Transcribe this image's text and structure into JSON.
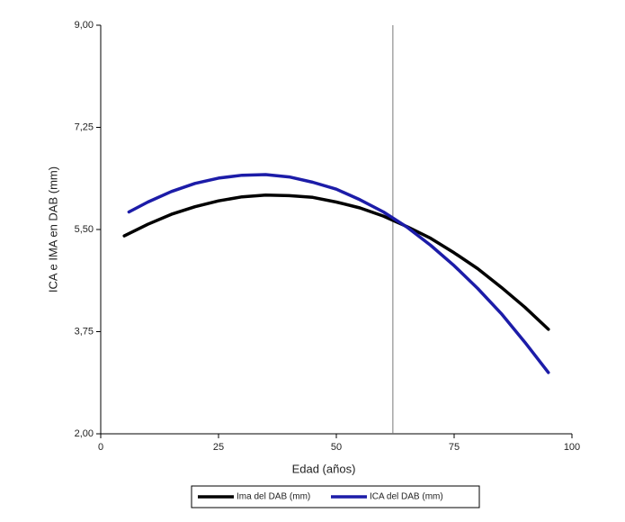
{
  "chart_data": {
    "type": "line",
    "x_label": "Edad (años)",
    "y_label": "ICA e IMA en DAB (mm)",
    "xlim": [
      0,
      100
    ],
    "xticks": [
      0,
      25,
      50,
      75,
      100
    ],
    "ylim": [
      2,
      9
    ],
    "yticks": [
      {
        "value": 2,
        "label": "2,00"
      },
      {
        "value": 3.75,
        "label": "3,75"
      },
      {
        "value": 5.5,
        "label": "5,50"
      },
      {
        "value": 7.25,
        "label": "7,25"
      },
      {
        "value": 9,
        "label": "9,00"
      }
    ],
    "reference_x": 62,
    "series": [
      {
        "name": "Ima del DAB (mm)",
        "color": "#000000",
        "x": [
          5,
          10,
          15,
          20,
          25,
          30,
          35,
          40,
          45,
          50,
          55,
          60,
          65,
          70,
          75,
          80,
          85,
          90,
          95
        ],
        "values": [
          5.39,
          5.59,
          5.76,
          5.89,
          5.99,
          6.06,
          6.09,
          6.08,
          6.05,
          5.97,
          5.87,
          5.73,
          5.55,
          5.35,
          5.1,
          4.83,
          4.51,
          4.17,
          3.79
        ]
      },
      {
        "name": "ICA del DAB (mm)",
        "color": "#1c1ca8",
        "x": [
          6,
          10,
          15,
          20,
          25,
          30,
          35,
          40,
          45,
          50,
          55,
          60,
          65,
          70,
          75,
          80,
          85,
          90,
          95
        ],
        "values": [
          5.8,
          5.97,
          6.15,
          6.29,
          6.38,
          6.43,
          6.44,
          6.4,
          6.31,
          6.19,
          6.01,
          5.8,
          5.54,
          5.23,
          4.88,
          4.49,
          4.06,
          3.57,
          3.05
        ]
      }
    ]
  }
}
